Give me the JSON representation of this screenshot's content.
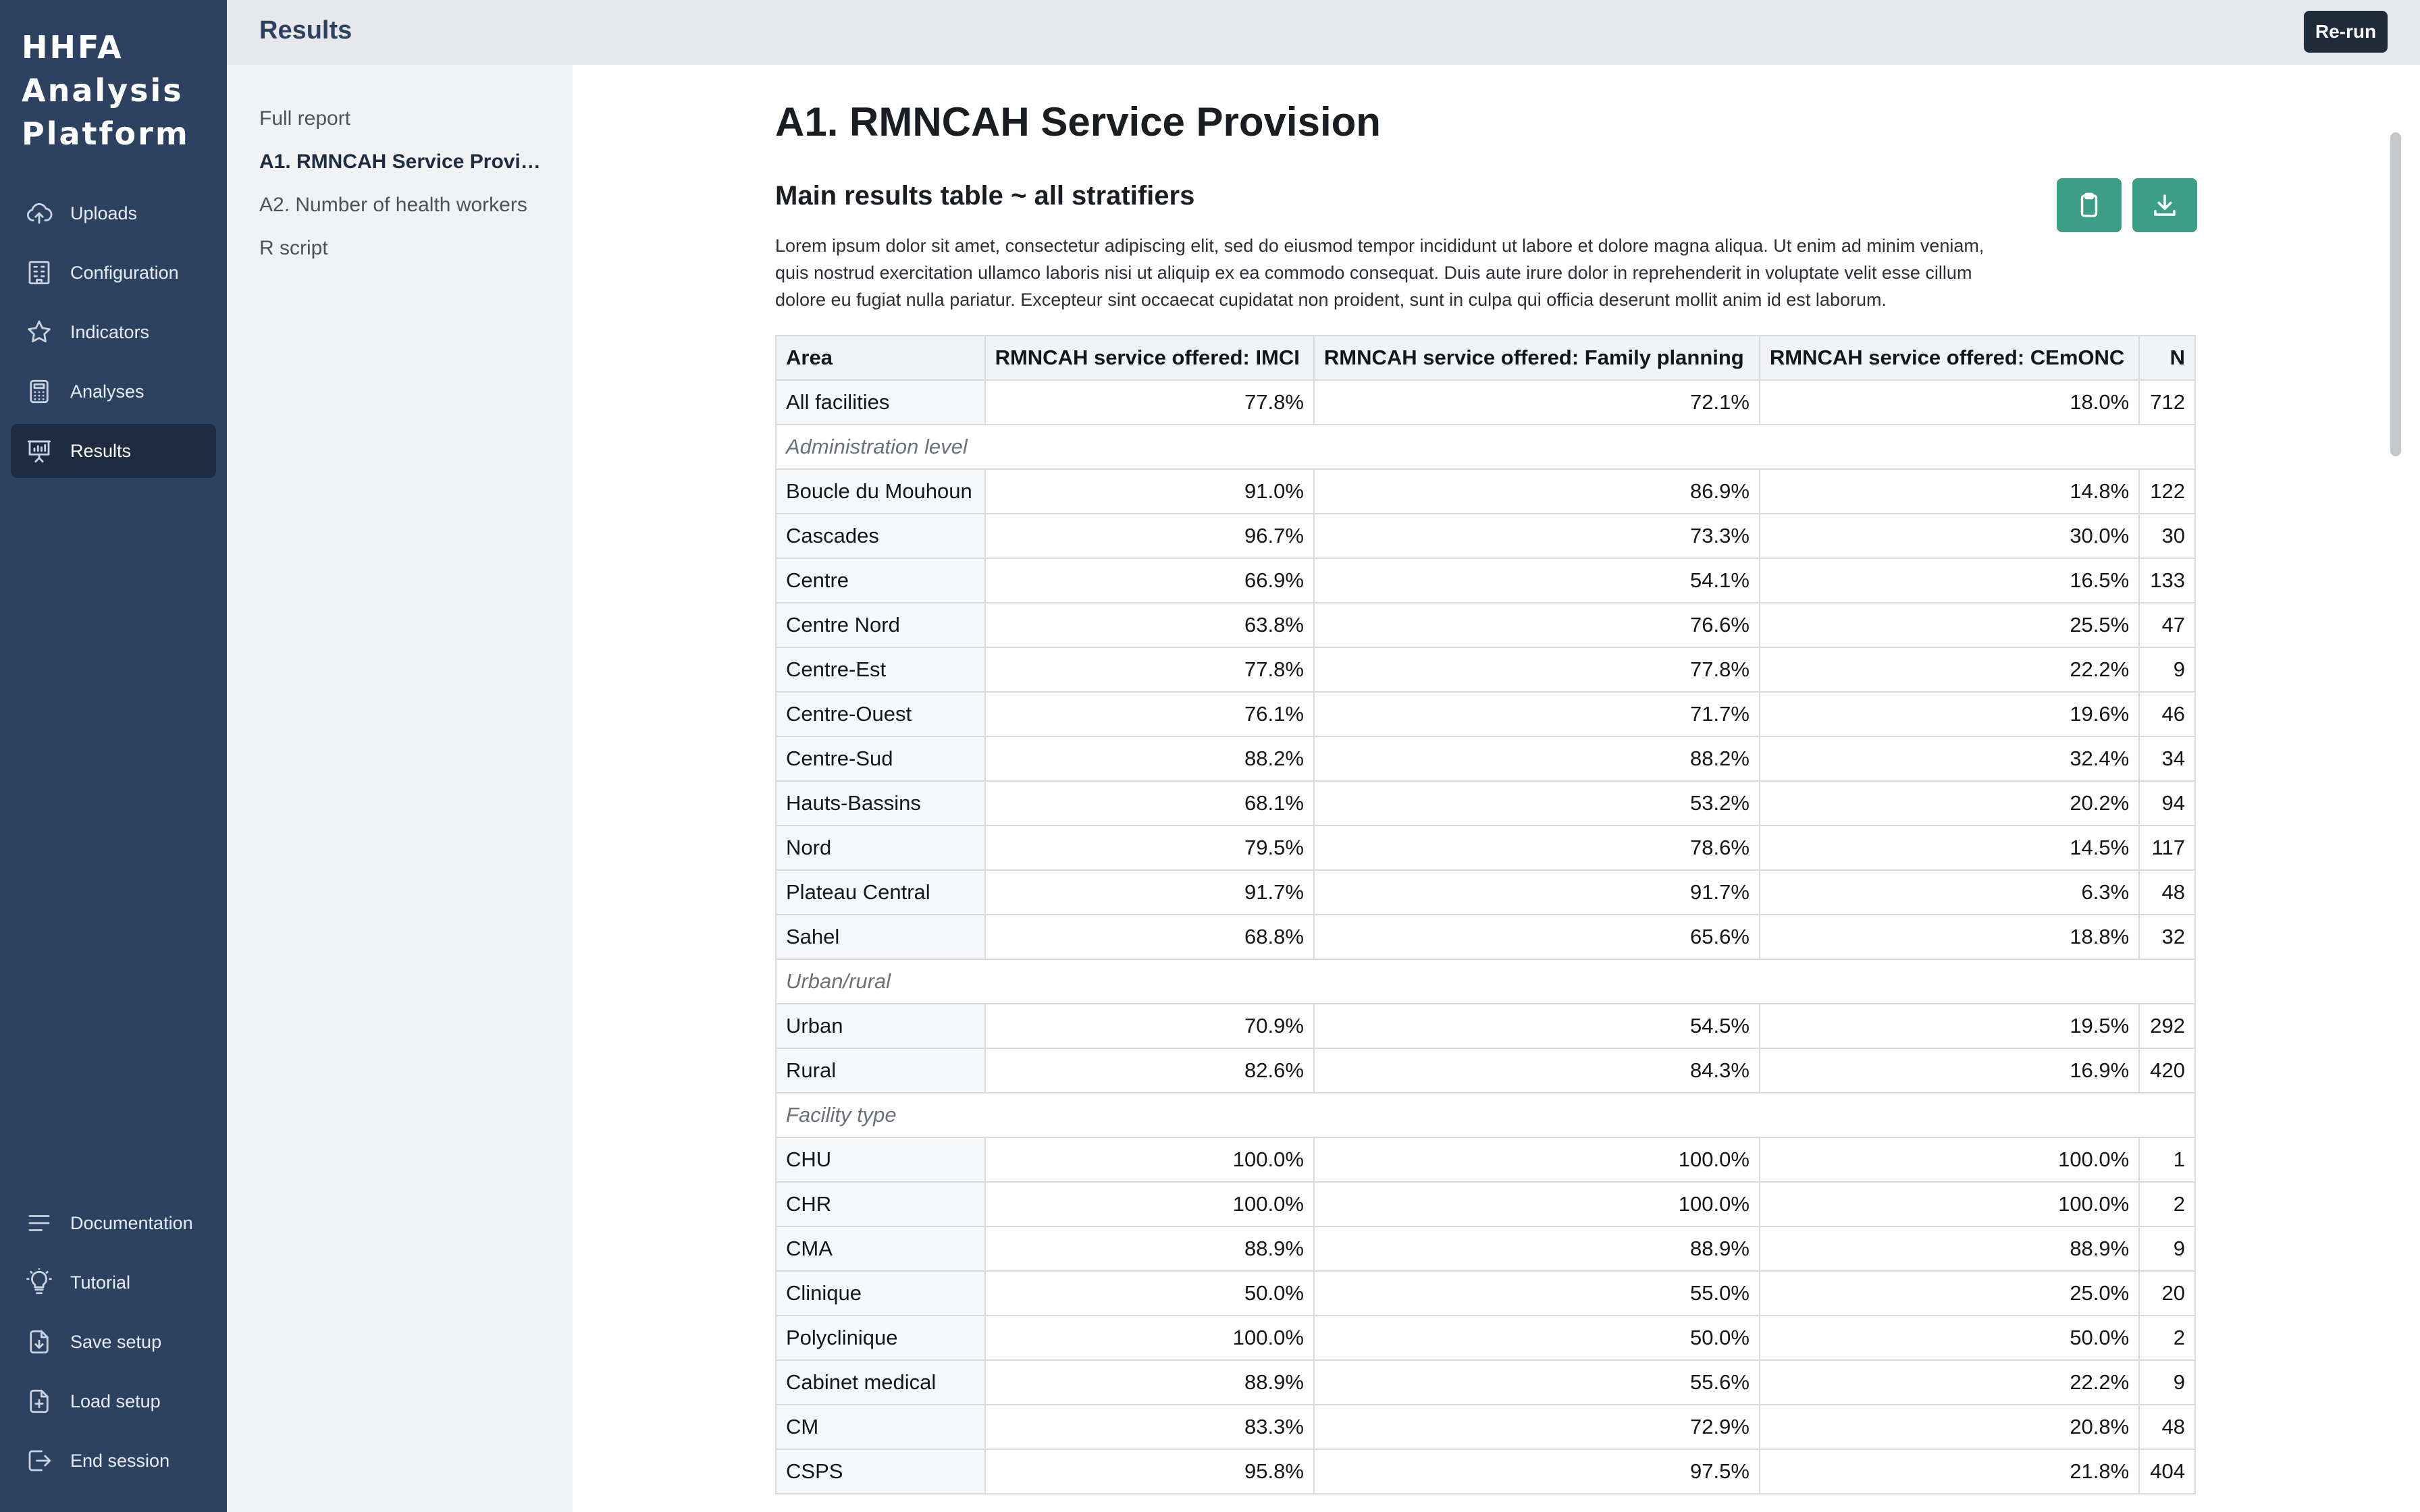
{
  "brand": {
    "line1": "HHFA",
    "line2": "Analysis",
    "line3": "Platform"
  },
  "nav_top": [
    {
      "label": "Uploads",
      "icon": "upload-cloud-icon"
    },
    {
      "label": "Configuration",
      "icon": "building-icon"
    },
    {
      "label": "Indicators",
      "icon": "star-icon"
    },
    {
      "label": "Analyses",
      "icon": "calculator-icon"
    },
    {
      "label": "Results",
      "icon": "presentation-chart-icon",
      "active": true
    }
  ],
  "nav_bottom": [
    {
      "label": "Documentation",
      "icon": "menu-lines-icon"
    },
    {
      "label": "Tutorial",
      "icon": "lightbulb-icon"
    },
    {
      "label": "Save setup",
      "icon": "file-download-icon"
    },
    {
      "label": "Load setup",
      "icon": "file-add-icon"
    },
    {
      "label": "End session",
      "icon": "logout-icon"
    }
  ],
  "header": {
    "title": "Results",
    "rerun_label": "Re-run"
  },
  "subnav": [
    {
      "label": "Full report"
    },
    {
      "label": "A1. RMNCAH Service Provision",
      "active": true
    },
    {
      "label": "A2. Number of health workers"
    },
    {
      "label": "R script"
    }
  ],
  "main": {
    "title": "A1. RMNCAH Service Provision",
    "section_title": "Main results table ~ all stratifiers",
    "description": "Lorem ipsum dolor sit amet, consectetur adipiscing elit, sed do eiusmod tempor incididunt ut labore et dolore magna aliqua. Ut enim ad minim veniam, quis nostrud exercitation ullamco laboris nisi ut aliquip ex ea commodo consequat. Duis aute irure dolor in reprehenderit in voluptate velit esse cillum dolore eu fugiat nulla pariatur. Excepteur sint occaecat cupidatat non proident, sunt in culpa qui officia deserunt mollit anim id est laborum.",
    "copy_icon": "clipboard-icon",
    "download_icon": "download-icon"
  },
  "table": {
    "headers": [
      "Area",
      "RMNCAH service offered: IMCI",
      "RMNCAH service offered: Family planning",
      "RMNCAH service offered: CEmONC",
      "N"
    ],
    "rows": [
      {
        "area": "All facilities",
        "imci": "77.8%",
        "fp": "72.1%",
        "cemonc": "18.0%",
        "n": "712"
      },
      {
        "group": "Administration level"
      },
      {
        "area": "Boucle du Mouhoun",
        "imci": "91.0%",
        "fp": "86.9%",
        "cemonc": "14.8%",
        "n": "122"
      },
      {
        "area": "Cascades",
        "imci": "96.7%",
        "fp": "73.3%",
        "cemonc": "30.0%",
        "n": "30"
      },
      {
        "area": "Centre",
        "imci": "66.9%",
        "fp": "54.1%",
        "cemonc": "16.5%",
        "n": "133"
      },
      {
        "area": "Centre Nord",
        "imci": "63.8%",
        "fp": "76.6%",
        "cemonc": "25.5%",
        "n": "47"
      },
      {
        "area": "Centre-Est",
        "imci": "77.8%",
        "fp": "77.8%",
        "cemonc": "22.2%",
        "n": "9"
      },
      {
        "area": "Centre-Ouest",
        "imci": "76.1%",
        "fp": "71.7%",
        "cemonc": "19.6%",
        "n": "46"
      },
      {
        "area": "Centre-Sud",
        "imci": "88.2%",
        "fp": "88.2%",
        "cemonc": "32.4%",
        "n": "34"
      },
      {
        "area": "Hauts-Bassins",
        "imci": "68.1%",
        "fp": "53.2%",
        "cemonc": "20.2%",
        "n": "94"
      },
      {
        "area": "Nord",
        "imci": "79.5%",
        "fp": "78.6%",
        "cemonc": "14.5%",
        "n": "117"
      },
      {
        "area": "Plateau Central",
        "imci": "91.7%",
        "fp": "91.7%",
        "cemonc": "6.3%",
        "n": "48"
      },
      {
        "area": "Sahel",
        "imci": "68.8%",
        "fp": "65.6%",
        "cemonc": "18.8%",
        "n": "32"
      },
      {
        "group": "Urban/rural"
      },
      {
        "area": "Urban",
        "imci": "70.9%",
        "fp": "54.5%",
        "cemonc": "19.5%",
        "n": "292"
      },
      {
        "area": "Rural",
        "imci": "82.6%",
        "fp": "84.3%",
        "cemonc": "16.9%",
        "n": "420"
      },
      {
        "group": "Facility type"
      },
      {
        "area": "CHU",
        "imci": "100.0%",
        "fp": "100.0%",
        "cemonc": "100.0%",
        "n": "1"
      },
      {
        "area": "CHR",
        "imci": "100.0%",
        "fp": "100.0%",
        "cemonc": "100.0%",
        "n": "2"
      },
      {
        "area": "CMA",
        "imci": "88.9%",
        "fp": "88.9%",
        "cemonc": "88.9%",
        "n": "9"
      },
      {
        "area": "Clinique",
        "imci": "50.0%",
        "fp": "55.0%",
        "cemonc": "25.0%",
        "n": "20"
      },
      {
        "area": "Polyclinique",
        "imci": "100.0%",
        "fp": "50.0%",
        "cemonc": "50.0%",
        "n": "2"
      },
      {
        "area": "Cabinet medical",
        "imci": "88.9%",
        "fp": "55.6%",
        "cemonc": "22.2%",
        "n": "9"
      },
      {
        "area": "CM",
        "imci": "83.3%",
        "fp": "72.9%",
        "cemonc": "20.8%",
        "n": "48"
      },
      {
        "area": "CSPS",
        "imci": "95.8%",
        "fp": "97.5%",
        "cemonc": "21.8%",
        "n": "404"
      }
    ]
  }
}
